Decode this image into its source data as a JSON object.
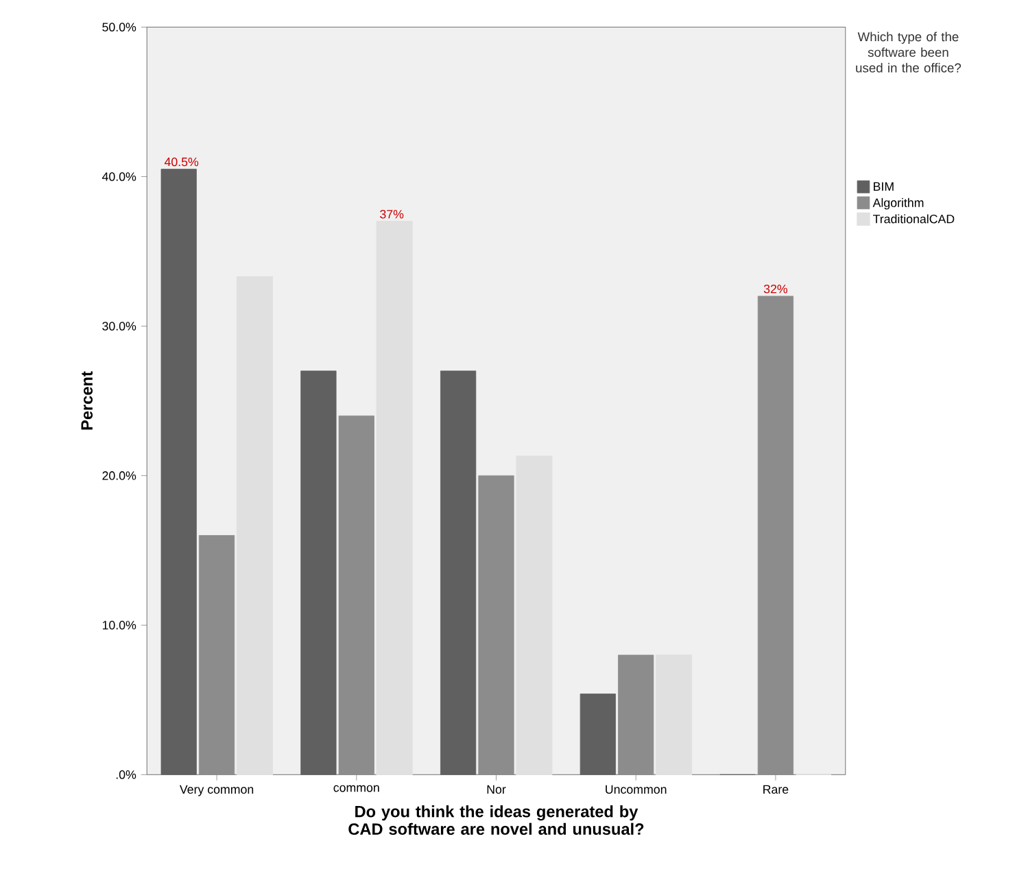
{
  "chart_data": {
    "type": "bar",
    "xlabel": "Do you think the ideas generated by CAD software are novel and unusual?",
    "ylabel": "Percent",
    "legend_title": "Which type of the software been used in the office?",
    "legend": "right",
    "categories": [
      "Very common",
      "common",
      "Nor",
      "Uncommon",
      "Rare"
    ],
    "series": [
      {
        "name": "BIM",
        "color": "#606060",
        "values": [
          40.5,
          27.0,
          27.0,
          5.4,
          0
        ],
        "value_labels": [
          "40.5%",
          null,
          null,
          null,
          null
        ]
      },
      {
        "name": "Algorithm",
        "color": "#8c8c8c",
        "values": [
          16.0,
          24.0,
          20.0,
          8.0,
          32
        ],
        "value_labels": [
          null,
          null,
          null,
          null,
          "32%"
        ]
      },
      {
        "name": "TraditionalCAD",
        "color": "#e0e0e0",
        "values": [
          33.3,
          37,
          21.3,
          8.0,
          0
        ],
        "value_labels": [
          null,
          "37%",
          null,
          null,
          null
        ]
      }
    ],
    "ylim": [
      0,
      50
    ],
    "yticks": [
      {
        "value": 0,
        "label": ".0%"
      },
      {
        "value": 10,
        "label": "10.0%"
      },
      {
        "value": 20,
        "label": "20.0%"
      },
      {
        "value": 30,
        "label": "30.0%"
      },
      {
        "value": 40,
        "label": "40.0%"
      },
      {
        "value": 50,
        "label": "50.0%"
      }
    ]
  }
}
